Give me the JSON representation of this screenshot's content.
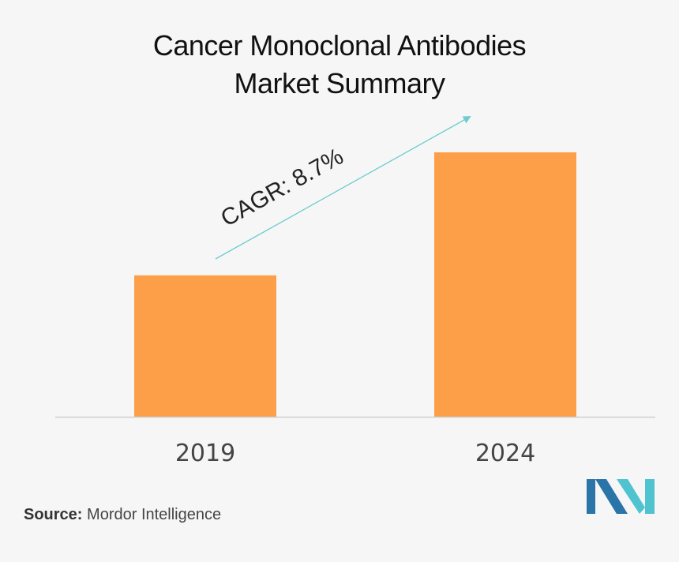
{
  "chart_data": {
    "type": "bar",
    "title": [
      "Cancer Monoclonal Antibodies",
      "Market Summary"
    ],
    "categories": [
      "2019",
      "2024"
    ],
    "values": [
      1.0,
      1.87
    ],
    "bar_color": "#fd9f48",
    "annotation": "CAGR: 8.7%",
    "arrow_color": "#6ccdd0",
    "axis_color": "#cfcfcf",
    "grid": false,
    "legend": "none"
  },
  "source": {
    "label": "Source:",
    "text": "Mordor Intelligence"
  },
  "logo": {
    "colors": [
      "#2a74a8",
      "#4fc3cf"
    ]
  }
}
